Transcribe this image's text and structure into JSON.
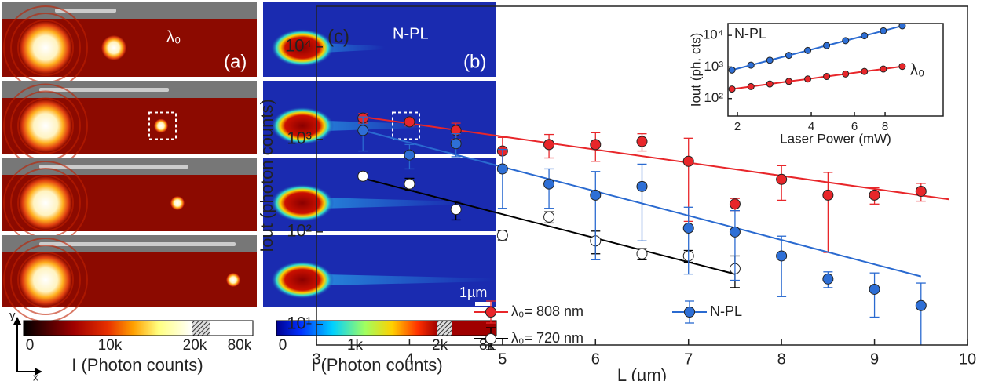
{
  "figure": {
    "panel_a": {
      "label": "λ₀",
      "tag": "(a)"
    },
    "panel_b": {
      "label": "N-PL",
      "tag": "(b)",
      "scale_bar": "1µm"
    },
    "colorbar_a": {
      "ticks": [
        "0",
        "10k",
        "20k",
        "80k"
      ],
      "title": "I (Photon counts)"
    },
    "colorbar_b": {
      "ticks": [
        "0",
        "1k",
        "2k",
        "8k"
      ],
      "title": "I (Photon counts)"
    },
    "axes": {
      "y": "y",
      "x": "x"
    }
  },
  "chart_data": [
    {
      "type": "scatter",
      "panel_label": "(c)",
      "x_label": "L (µm)",
      "y_label": "Iout (photon counts)",
      "yscale": "log",
      "xlim": [
        3,
        10
      ],
      "ylim": [
        6,
        27500
      ],
      "xticks": [
        3,
        4,
        5,
        6,
        7,
        8,
        9,
        10
      ],
      "yticks": [
        {
          "value": 10,
          "label": "10¹"
        },
        {
          "value": 100,
          "label": "10²"
        },
        {
          "value": 1000,
          "label": "10³"
        },
        {
          "value": 10000,
          "label": "10⁴"
        }
      ],
      "legend": "lower left",
      "series": [
        {
          "name": "λ₀= 808 nm",
          "color": "#e8262a",
          "marker_fill": "#e8262a",
          "x": [
            3.5,
            4,
            4.5,
            5,
            5.5,
            6,
            6.5,
            7,
            7.5,
            8,
            8.5,
            9,
            9.5
          ],
          "values": [
            1700,
            1550,
            1250,
            750,
            880,
            880,
            950,
            580,
            200,
            370,
            250,
            250,
            275
          ],
          "errors": [
            200,
            150,
            250,
            300,
            250,
            300,
            200,
            450,
            30,
            150,
            190,
            50,
            60
          ],
          "fit": {
            "x": [
              3.5,
              9.8
            ],
            "values": [
              1750,
              225
            ]
          }
        },
        {
          "name": "λ₀= 720 nm",
          "color": "#000000",
          "marker_fill": "#ffffff",
          "x": [
            3.5,
            4,
            4.5,
            5,
            5.5,
            6,
            6.5,
            7,
            7.5
          ],
          "values": [
            400,
            330,
            175,
            92,
            145,
            80,
            58,
            55,
            40
          ],
          "errors": [
            30,
            50,
            40,
            10,
            20,
            22,
            8,
            8,
            15
          ],
          "fit": {
            "x": [
              3.5,
              7.5
            ],
            "values": [
              380,
              35
            ]
          }
        },
        {
          "name": "N-PL",
          "color": "#2a6ad0",
          "marker_fill": "#2e6fd6",
          "x": [
            3.5,
            4,
            4.5,
            5,
            5.5,
            6,
            6.5,
            7,
            7.5,
            8,
            8.5,
            9,
            9.5
          ],
          "values": [
            1250,
            680,
            900,
            480,
            330,
            250,
            310,
            110,
            100,
            55,
            31,
            24,
            16
          ],
          "errors": [
            500,
            200,
            250,
            300,
            150,
            200,
            230,
            75,
            70,
            35,
            6,
            12,
            12
          ],
          "fit": {
            "x": [
              3.5,
              9.5
            ],
            "values": [
              1250,
              33
            ]
          }
        }
      ]
    },
    {
      "type": "scatter",
      "x_label": "Laser Power (mW)",
      "y_label": "Iout (ph. cts)",
      "xscale": "log",
      "yscale": "log",
      "xlim": [
        1.83,
        13.8
      ],
      "ylim": [
        28,
        23700
      ],
      "xticks": [
        2,
        4,
        6,
        8
      ],
      "yticks": [
        {
          "value": 100,
          "label": "10²"
        },
        {
          "value": 1000,
          "label": "10³"
        },
        {
          "value": 10000,
          "label": "10⁴"
        }
      ],
      "annotations": [
        "N-PL",
        "λ₀"
      ],
      "series": [
        {
          "color": "#2a6ad0",
          "marker_fill": "#2e6fd6",
          "line": true,
          "x": [
            1.9,
            2.27,
            2.71,
            3.24,
            3.87,
            4.62,
            5.52,
            6.59,
            7.87,
            9.4
          ],
          "values": [
            800,
            1140,
            1630,
            2330,
            3330,
            4760,
            6800,
            9720,
            13900,
            20000
          ]
        },
        {
          "color": "#e8262a",
          "marker_fill": "#e8262a",
          "line": true,
          "x": [
            1.9,
            2.27,
            2.71,
            3.24,
            3.87,
            4.62,
            5.52,
            6.59,
            7.87,
            9.4
          ],
          "values": [
            200,
            240,
            290,
            350,
            415,
            500,
            600,
            720,
            860,
            1040
          ]
        }
      ]
    }
  ]
}
